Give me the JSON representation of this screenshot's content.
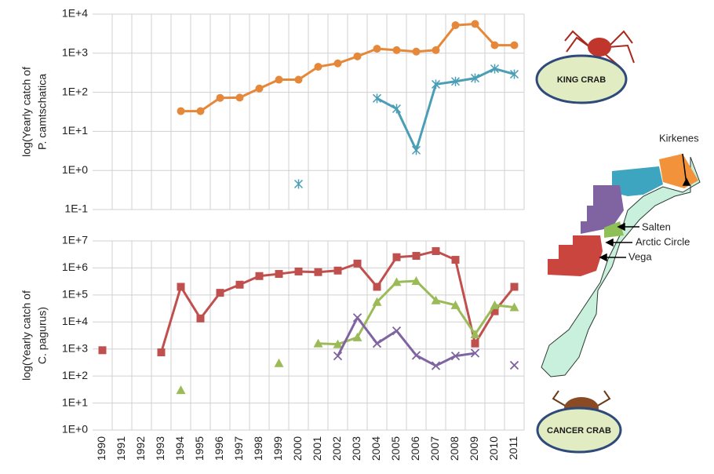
{
  "chart_data": [
    {
      "type": "line",
      "log": true,
      "grid": true,
      "ylabel": [
        "log(Yearly catch of",
        "P. camtschatica"
      ],
      "annotation": "KING CRAB",
      "ylim": [
        0.1,
        10000
      ],
      "yticks": [
        {
          "value": 0.1,
          "label": "1E-1"
        },
        {
          "value": 1,
          "label": "1E+0"
        },
        {
          "value": 10,
          "label": "1E+1"
        },
        {
          "value": 100,
          "label": "1E+2"
        },
        {
          "value": 1000,
          "label": "1E+3"
        },
        {
          "value": 10000,
          "label": "1E+4"
        }
      ],
      "series": [
        {
          "color": "#e5883a",
          "marker": "circle",
          "values": [
            null,
            null,
            null,
            null,
            33,
            33,
            72,
            73,
            125,
            210,
            210,
            450,
            550,
            830,
            1300,
            1200,
            1100,
            1200,
            5200,
            5600,
            1600,
            1600
          ]
        },
        {
          "color": "#4a9eb5",
          "marker": "asterisk",
          "values": [
            null,
            null,
            null,
            null,
            null,
            null,
            null,
            null,
            null,
            null,
            0.45,
            null,
            null,
            null,
            70,
            38,
            3.3,
            160,
            190,
            230,
            400,
            290
          ]
        }
      ]
    },
    {
      "type": "line",
      "log": true,
      "grid": true,
      "ylabel": [
        "log(Yearly catch of",
        "C. pagurus)"
      ],
      "annotation": "CANCER CRAB",
      "categories": [
        "1990",
        "1991",
        "1992",
        "1993",
        "1994",
        "1995",
        "1996",
        "1997",
        "1998",
        "1999",
        "2000",
        "2001",
        "2002",
        "2003",
        "2004",
        "2005",
        "2006",
        "2007",
        "2008",
        "2009",
        "2010",
        "2011"
      ],
      "ylim": [
        1,
        10000000
      ],
      "yticks": [
        {
          "value": 1,
          "label": "1E+0"
        },
        {
          "value": 10,
          "label": "1E+1"
        },
        {
          "value": 100,
          "label": "1E+2"
        },
        {
          "value": 1000,
          "label": "1E+3"
        },
        {
          "value": 10000,
          "label": "1E+4"
        },
        {
          "value": 100000,
          "label": "1E+5"
        },
        {
          "value": 1000000,
          "label": "1E+6"
        },
        {
          "value": 10000000,
          "label": "1E+7"
        }
      ],
      "series": [
        {
          "color": "#c0504d",
          "marker": "square",
          "values": [
            900,
            null,
            null,
            750,
            200000,
            13500,
            120000,
            240000,
            500000,
            600000,
            740000,
            700000,
            800000,
            1450000,
            200000,
            2500000,
            2800000,
            4200000,
            2000000,
            1600,
            25000,
            200000
          ]
        },
        {
          "color": "#9bbb59",
          "marker": "triangle",
          "values": [
            null,
            null,
            null,
            null,
            30,
            null,
            null,
            null,
            null,
            300,
            null,
            1600,
            1500,
            2700,
            55000,
            300000,
            330000,
            63000,
            42000,
            3500,
            42000,
            35000
          ]
        },
        {
          "color": "#8064a2",
          "marker": "x",
          "values": [
            null,
            null,
            null,
            null,
            null,
            null,
            null,
            null,
            null,
            null,
            null,
            null,
            550,
            14500,
            1600,
            4700,
            580,
            240,
            550,
            700,
            null,
            250
          ]
        }
      ]
    }
  ],
  "map": {
    "labels": [
      "Kirkenes",
      "Salten",
      "Arctic Circle",
      "Vega"
    ]
  }
}
